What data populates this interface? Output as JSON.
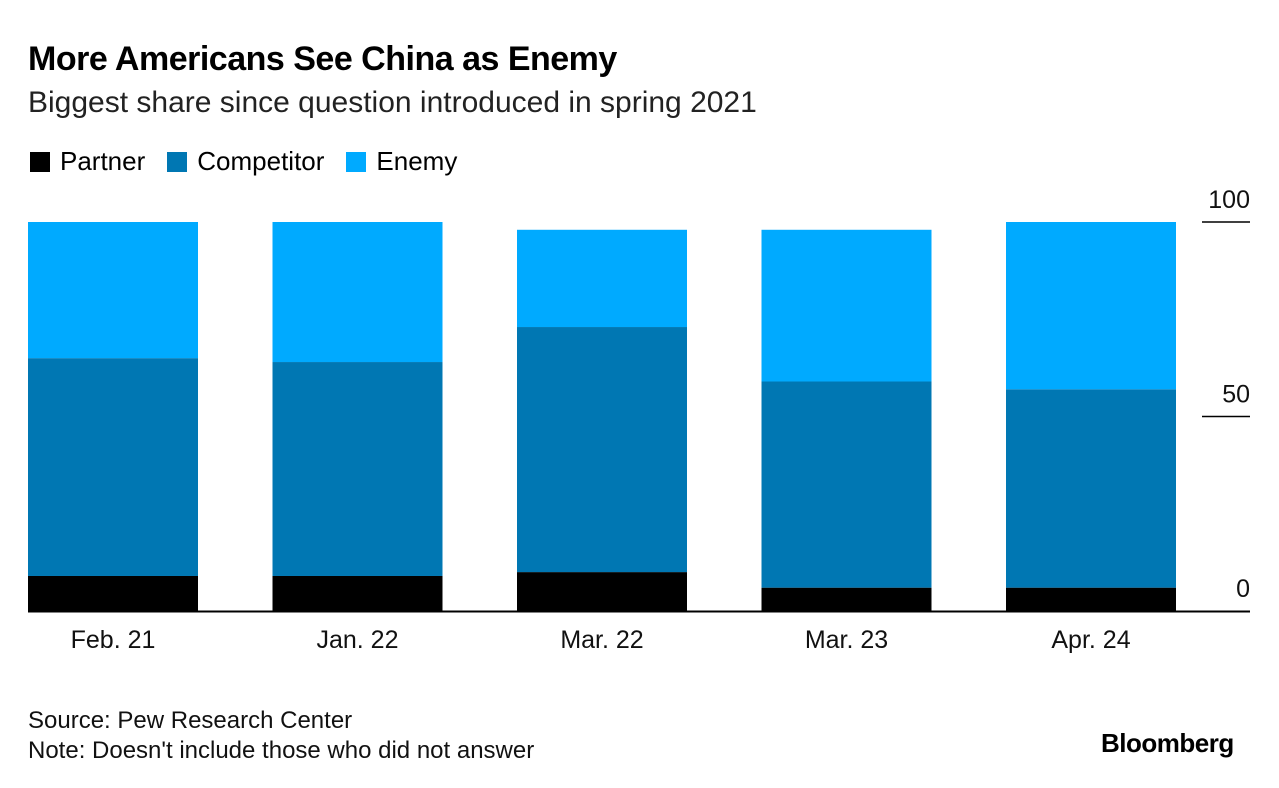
{
  "title": "More Americans See China as Enemy",
  "subtitle": "Biggest share since question introduced in spring 2021",
  "legend": [
    {
      "label": "Partner",
      "color": "#000000"
    },
    {
      "label": "Competitor",
      "color": "#0077b3"
    },
    {
      "label": "Enemy",
      "color": "#00aaff"
    }
  ],
  "footer": {
    "source": "Source: Pew Research Center",
    "note": "Note: Doesn't include those who did not answer",
    "brand": "Bloomberg"
  },
  "chart_data": {
    "type": "bar",
    "stacked": true,
    "title": "More Americans See China as Enemy",
    "subtitle": "Biggest share since question introduced in spring 2021",
    "categories": [
      "Feb. 21",
      "Jan. 22",
      "Mar. 22",
      "Mar. 23",
      "Apr. 24"
    ],
    "series": [
      {
        "name": "Partner",
        "color": "#000000",
        "values": [
          9,
          9,
          10,
          6,
          6
        ]
      },
      {
        "name": "Competitor",
        "color": "#0077b3",
        "values": [
          56,
          55,
          63,
          53,
          51
        ]
      },
      {
        "name": "Enemy",
        "color": "#00aaff",
        "values": [
          35,
          36,
          25,
          39,
          43
        ]
      }
    ],
    "ylim": [
      0,
      100
    ],
    "yticks": [
      0,
      50,
      100
    ],
    "y_axis_position": "right",
    "legend_position": "top-left",
    "grid": false
  }
}
